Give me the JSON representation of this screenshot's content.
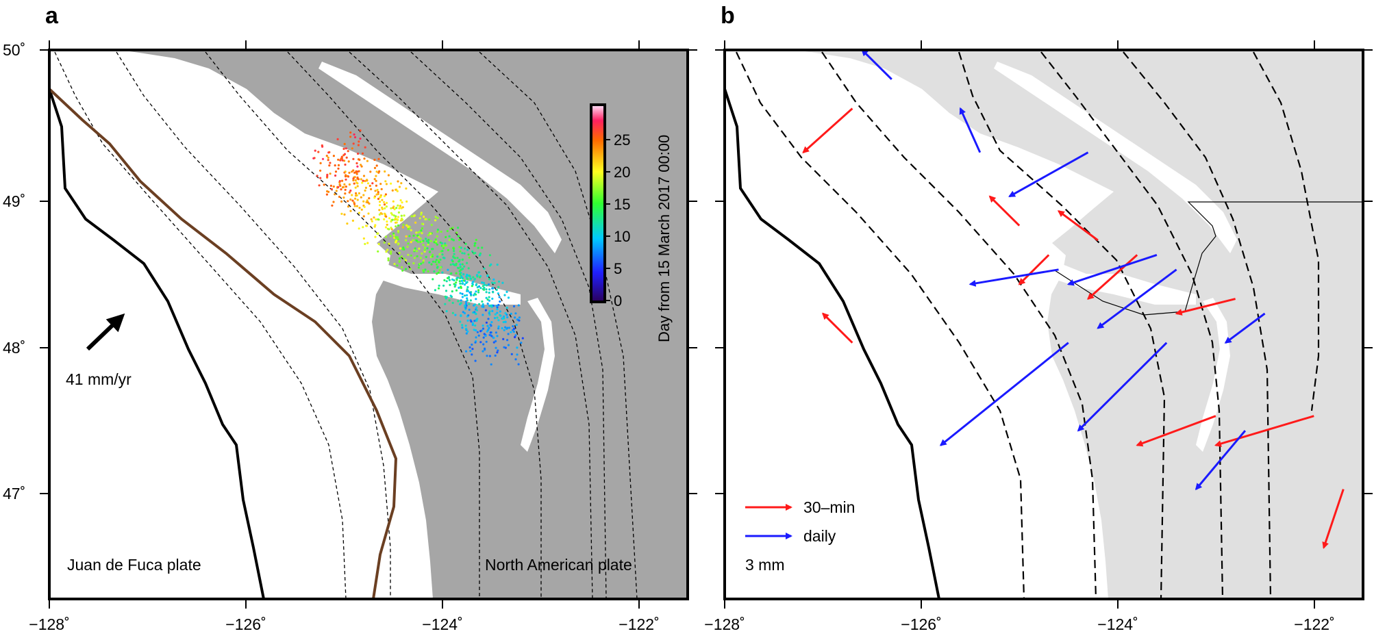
{
  "panels": {
    "a": {
      "label": "a",
      "plate_velocity": "41 mm/yr",
      "plate_left": "Juan de Fuca plate",
      "plate_right": "North American plate",
      "colorbar": {
        "title": "Day from 15 March 2017 00:00",
        "ticks": [
          "0",
          "5",
          "10",
          "15",
          "20",
          "25"
        ]
      }
    },
    "b": {
      "label": "b",
      "legend_30min": "30–min",
      "legend_daily": "daily",
      "scale": "3 mm"
    }
  },
  "axes": {
    "x_ticks": [
      "−128˚",
      "−126˚",
      "−124˚",
      "−122˚"
    ],
    "y_ticks": [
      "50˚",
      "49˚",
      "48˚",
      "47˚"
    ]
  },
  "colors": {
    "land_a": "#a6a6a6",
    "land_b": "#e0e0e0",
    "trench": "#6b3f22",
    "arrow_30min": "#ff1a1a",
    "arrow_daily": "#1a1aff"
  },
  "chart_data": {
    "type": "map",
    "x_range": [
      -128,
      -121.5
    ],
    "y_range": [
      46.25,
      50
    ],
    "panel_a_tremor_clusters": [
      {
        "lon": -125.1,
        "lat": 49.3,
        "day": 25
      },
      {
        "lon": -124.5,
        "lat": 48.8,
        "day": 18
      },
      {
        "lon": -123.8,
        "lat": 48.5,
        "day": 12
      },
      {
        "lon": -123.4,
        "lat": 48.0,
        "day": 6
      }
    ],
    "panel_b_vectors_30min": [
      [
        -126.7,
        49.6,
        -127.2,
        49.3
      ],
      [
        -126.7,
        48.0,
        -127.0,
        48.2
      ],
      [
        -125.0,
        48.8,
        -125.3,
        49.0
      ],
      [
        -124.7,
        48.6,
        -125.0,
        48.4
      ],
      [
        -124.2,
        48.7,
        -124.6,
        48.9
      ],
      [
        -123.8,
        48.6,
        -124.3,
        48.3
      ],
      [
        -123.0,
        47.5,
        -123.8,
        47.3
      ],
      [
        -122.8,
        48.3,
        -123.4,
        48.2
      ],
      [
        -121.7,
        47.0,
        -121.9,
        46.6
      ],
      [
        -122.0,
        47.5,
        -123.0,
        47.3
      ]
    ],
    "panel_b_vectors_daily": [
      [
        -126.3,
        49.8,
        -126.6,
        50.0
      ],
      [
        -125.4,
        49.3,
        -125.6,
        49.6
      ],
      [
        -124.3,
        49.3,
        -125.1,
        49.0
      ],
      [
        -124.6,
        48.5,
        -125.5,
        48.4
      ],
      [
        -123.6,
        48.6,
        -124.5,
        48.4
      ],
      [
        -123.4,
        48.5,
        -124.2,
        48.1
      ],
      [
        -124.5,
        48.0,
        -125.8,
        47.3
      ],
      [
        -123.5,
        48.0,
        -124.4,
        47.4
      ],
      [
        -122.5,
        48.2,
        -122.9,
        48.0
      ],
      [
        -122.7,
        47.4,
        -123.2,
        47.0
      ]
    ]
  }
}
